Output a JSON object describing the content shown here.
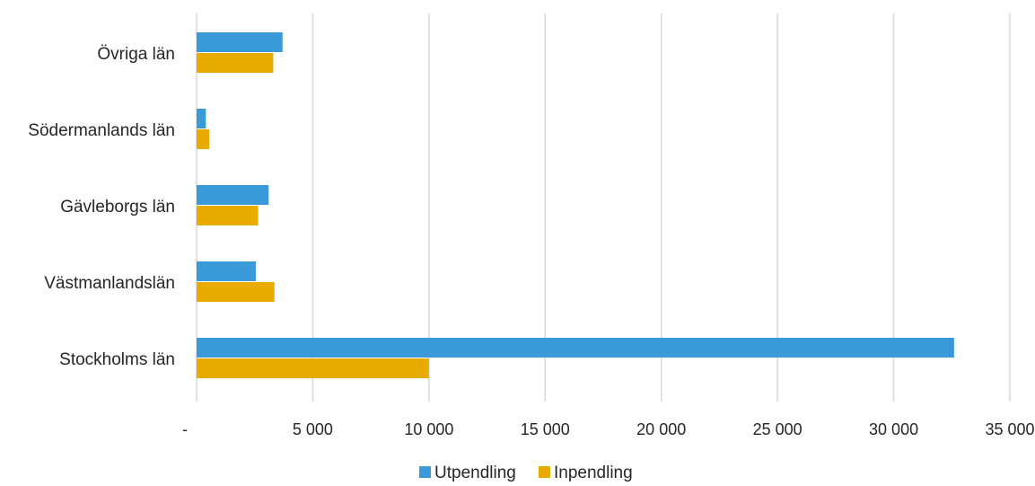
{
  "chart_data": {
    "type": "bar",
    "orientation": "horizontal",
    "categories": [
      "Övriga län",
      "Södermanlands län",
      "Gävleborgs län",
      "Västmanlandslän",
      "Stockholms län"
    ],
    "series": [
      {
        "name": "Utpendling",
        "color": "#3a9ad9",
        "values": [
          3700,
          400,
          3100,
          2550,
          32600
        ]
      },
      {
        "name": "Inpendling",
        "color": "#e8ab00",
        "values": [
          3300,
          550,
          2650,
          3350,
          10000
        ]
      }
    ],
    "xlim": [
      0,
      35000
    ],
    "xticks": [
      {
        "value": 0,
        "label": "-"
      },
      {
        "value": 5000,
        "label": "5 000"
      },
      {
        "value": 10000,
        "label": "10 000"
      },
      {
        "value": 15000,
        "label": "15 000"
      },
      {
        "value": 20000,
        "label": "20 000"
      },
      {
        "value": 25000,
        "label": "25 000"
      },
      {
        "value": 30000,
        "label": "30 000"
      },
      {
        "value": 35000,
        "label": "35 000"
      }
    ],
    "grid": true,
    "legend": "bottom-center"
  }
}
